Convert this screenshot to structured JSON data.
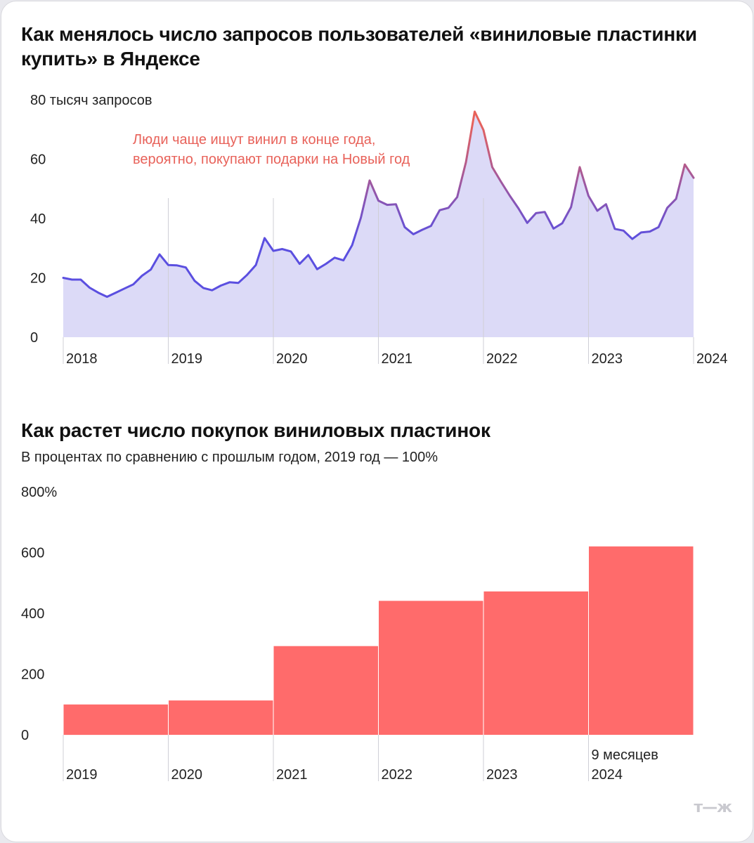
{
  "chart1": {
    "title": "Как менялось число запросов пользователей «виниловые пластинки купить» в Яндексе",
    "annotation_line1": "Люди чаще ищут винил в конце года,",
    "annotation_line2": "вероятно, покупают подарки на Новый год",
    "colors": {
      "line_low": "#5b4fe0",
      "line_high": "#e8625a",
      "area": "#dcdaf7",
      "annotation": "#e8625a"
    }
  },
  "chart2": {
    "title": "Как растет число покупок виниловых пластинок",
    "subtitle": "В процентах по сравнению с прошлым годом, 2019 год — 100%",
    "colors": {
      "bar": "#ff6b6b"
    }
  },
  "logo": "т—ж",
  "chart_data": [
    {
      "type": "area",
      "title": "Как менялось число запросов пользователей «виниловые пластинки купить» в Яндексе",
      "ylabel": "тысяч запросов",
      "y_tick_labels": [
        "0",
        "20",
        "40",
        "60",
        "80 тысяч запросов"
      ],
      "y_ticks": [
        0,
        20,
        40,
        60,
        80
      ],
      "ylim": [
        0,
        80
      ],
      "x_tick_labels": [
        "2018",
        "2019",
        "2020",
        "2021",
        "2022",
        "2023",
        "2024"
      ],
      "x_ticks": [
        2018,
        2019,
        2020,
        2021,
        2022,
        2023,
        2024
      ],
      "xlim": [
        2018,
        2024
      ],
      "x": [
        2018.0,
        2018.0833,
        2018.1667,
        2018.25,
        2018.3333,
        2018.4167,
        2018.5,
        2018.5833,
        2018.6667,
        2018.75,
        2018.8333,
        2018.9167,
        2019.0,
        2019.0833,
        2019.1667,
        2019.25,
        2019.3333,
        2019.4167,
        2019.5,
        2019.5833,
        2019.6667,
        2019.75,
        2019.8333,
        2019.9167,
        2020.0,
        2020.0833,
        2020.1667,
        2020.25,
        2020.3333,
        2020.4167,
        2020.5,
        2020.5833,
        2020.6667,
        2020.75,
        2020.8333,
        2020.9167,
        2021.0,
        2021.0833,
        2021.1667,
        2021.25,
        2021.3333,
        2021.4167,
        2021.5,
        2021.5833,
        2021.6667,
        2021.75,
        2021.8333,
        2021.9167,
        2022.0,
        2022.0833,
        2022.1667,
        2022.25,
        2022.3333,
        2022.4167,
        2022.5,
        2022.5833,
        2022.6667,
        2022.75,
        2022.8333,
        2022.9167,
        2023.0,
        2023.0833,
        2023.1667,
        2023.25,
        2023.3333,
        2023.4167,
        2023.5,
        2023.5833,
        2023.6667,
        2023.75,
        2023.8333,
        2023.9167,
        2024.0
      ],
      "values": [
        20,
        19.4,
        19.4,
        16.7,
        15.0,
        13.6,
        15.0,
        16.4,
        17.8,
        20.7,
        22.8,
        27.9,
        24.3,
        24.2,
        23.5,
        19.0,
        16.6,
        15.8,
        17.4,
        18.5,
        18.3,
        21.0,
        24.3,
        33.4,
        29.1,
        29.7,
        28.9,
        24.7,
        27.7,
        22.9,
        24.7,
        26.8,
        25.9,
        31.0,
        40.3,
        52.8,
        46.0,
        44.6,
        44.8,
        37.1,
        34.7,
        36.2,
        37.5,
        42.8,
        43.6,
        47.2,
        59.0,
        76.0,
        69.8,
        57.3,
        52.4,
        47.7,
        43.4,
        38.5,
        41.8,
        42.2,
        36.6,
        38.4,
        43.8,
        57.3,
        47.6,
        42.6,
        44.8,
        36.5,
        35.9,
        33.1,
        35.3,
        35.6,
        37.1,
        43.6,
        46.6,
        58.2,
        53.7
      ],
      "annotation": "Люди чаще ищут винил в конце года, вероятно, покупают подарки на Новый год",
      "grid": false
    },
    {
      "type": "bar",
      "title": "Как растет число покупок виниловых пластинок",
      "subtitle": "В процентах по сравнению с прошлым годом, 2019 год — 100%",
      "categories": [
        "2019",
        "2020",
        "2021",
        "2022",
        "2023",
        "9 месяцев 2024"
      ],
      "values": [
        100,
        113,
        292,
        441,
        472,
        620
      ],
      "ylabel": "%",
      "y_tick_labels": [
        "0",
        "200",
        "400",
        "600",
        "800%"
      ],
      "y_ticks": [
        0,
        200,
        400,
        600,
        800
      ],
      "ylim": [
        0,
        800
      ]
    }
  ]
}
